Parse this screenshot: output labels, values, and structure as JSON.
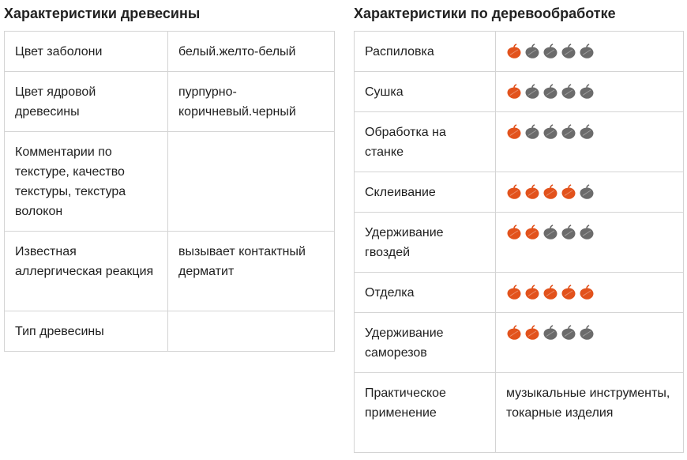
{
  "left": {
    "title": "Характеристики древесины",
    "rows": [
      {
        "label": "Цвет заболони",
        "value": "белый.желто-белый"
      },
      {
        "label": "Цвет ядровой древесины",
        "value": "пурпурно-коричневый.черный"
      },
      {
        "label": "Комментарии по текстуре, качество текстуры, текстура волокон",
        "value": ""
      },
      {
        "label": "Известная аллергическая реакция",
        "value": "вызывает контактный дерматит"
      },
      {
        "label": "Тип древесины",
        "value": ""
      }
    ]
  },
  "right": {
    "title": "Характеристики по деревообработке",
    "rating_max": 5,
    "colors": {
      "active": "#e2521c",
      "inactive": "#6b6b6b"
    },
    "icon": "leaf-icon",
    "rows": [
      {
        "label": "Распиловка",
        "rating": 1
      },
      {
        "label": "Сушка",
        "rating": 1
      },
      {
        "label": "Обработка на станке",
        "rating": 1
      },
      {
        "label": "Склеивание",
        "rating": 4
      },
      {
        "label": "Удерживание гвоздей",
        "rating": 2
      },
      {
        "label": "Отделка",
        "rating": 5
      },
      {
        "label": "Удерживание саморезов",
        "rating": 2
      },
      {
        "label": "Практическое применение",
        "value": "музыкальные инструменты, токарные изделия"
      }
    ]
  }
}
